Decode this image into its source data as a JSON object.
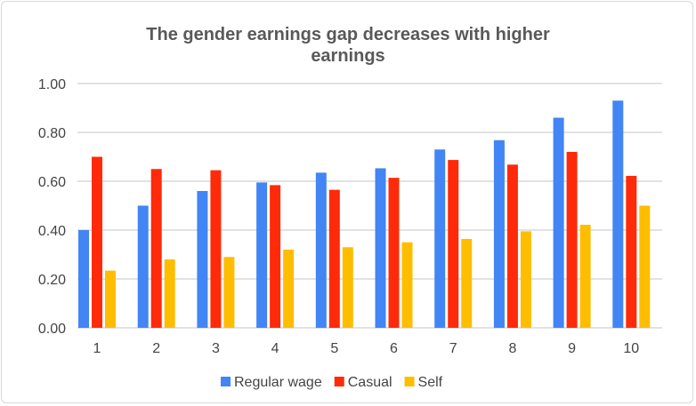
{
  "chart_data": {
    "type": "bar",
    "title_lines": [
      "The gender earnings gap decreases with higher",
      "earnings"
    ],
    "xlabel": "",
    "ylabel": "",
    "categories": [
      "1",
      "2",
      "3",
      "4",
      "5",
      "6",
      "7",
      "8",
      "9",
      "10"
    ],
    "ylim": [
      0,
      1
    ],
    "yticks": [
      "0.00",
      "0.20",
      "0.40",
      "0.60",
      "0.80",
      "1.00"
    ],
    "grid": true,
    "legend_position": "bottom",
    "series": [
      {
        "name": "Regular wage",
        "color": "#4285f4",
        "values": [
          0.4,
          0.5,
          0.56,
          0.595,
          0.635,
          0.653,
          0.73,
          0.768,
          0.86,
          0.93
        ]
      },
      {
        "name": "Casual",
        "color": "#ff2a0a",
        "values": [
          0.7,
          0.65,
          0.645,
          0.584,
          0.565,
          0.614,
          0.687,
          0.668,
          0.72,
          0.622
        ]
      },
      {
        "name": "Self",
        "color": "#ffbd00",
        "values": [
          0.234,
          0.28,
          0.29,
          0.32,
          0.33,
          0.35,
          0.364,
          0.395,
          0.422,
          0.5
        ]
      }
    ]
  }
}
